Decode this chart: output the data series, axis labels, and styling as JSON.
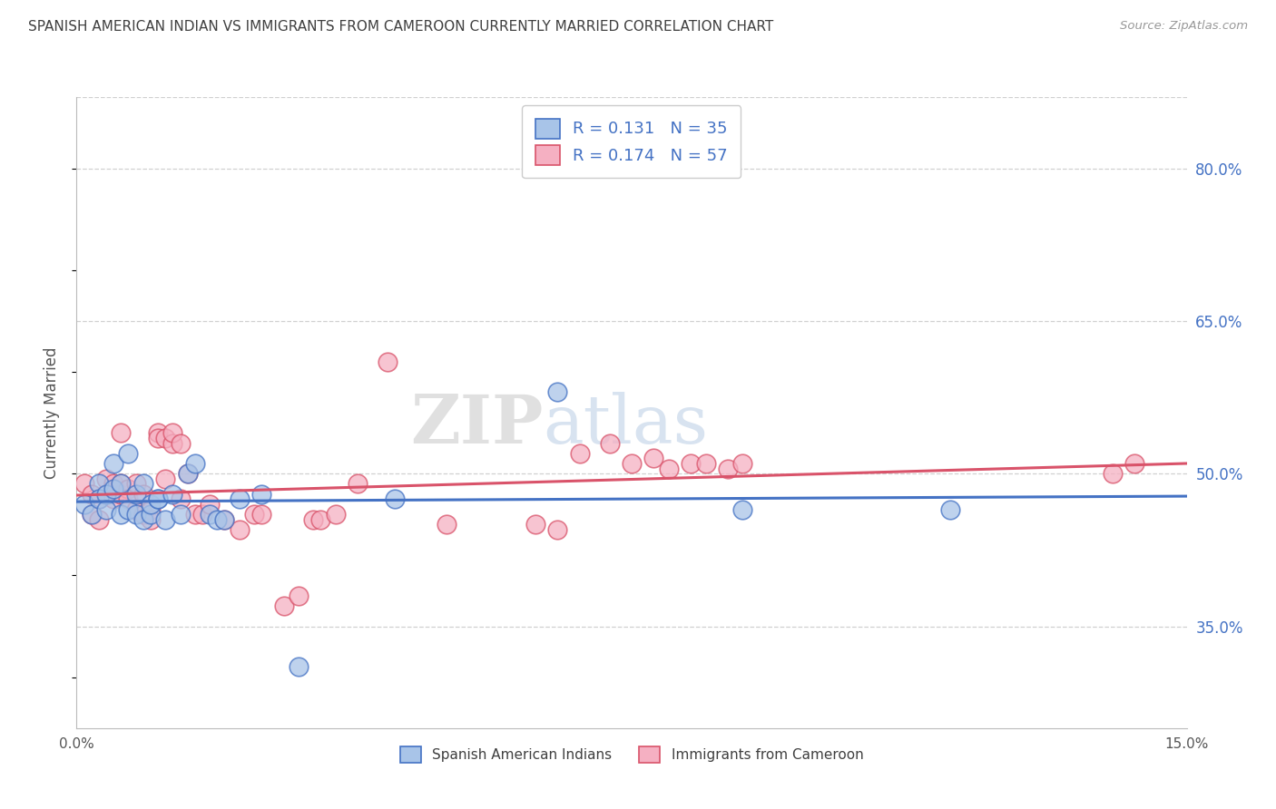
{
  "title": "SPANISH AMERICAN INDIAN VS IMMIGRANTS FROM CAMEROON CURRENTLY MARRIED CORRELATION CHART",
  "source": "Source: ZipAtlas.com",
  "ylabel": "Currently Married",
  "xlim": [
    0.0,
    0.15
  ],
  "ylim": [
    0.25,
    0.87
  ],
  "yticks": [
    0.35,
    0.5,
    0.65,
    0.8
  ],
  "ytick_labels": [
    "35.0%",
    "50.0%",
    "65.0%",
    "80.0%"
  ],
  "xticks": [
    0.0,
    0.03,
    0.06,
    0.09,
    0.12,
    0.15
  ],
  "xtick_labels": [
    "0.0%",
    "",
    "",
    "",
    "",
    "15.0%"
  ],
  "legend1_r": "0.131",
  "legend1_n": "35",
  "legend2_r": "0.174",
  "legend2_n": "57",
  "color_blue": "#a8c4e8",
  "color_pink": "#f5b0c2",
  "line_blue": "#4472c4",
  "line_pink": "#d9536a",
  "grid_color": "#d0d0d0",
  "title_color": "#404040",
  "blue_x": [
    0.001,
    0.002,
    0.003,
    0.003,
    0.004,
    0.004,
    0.005,
    0.005,
    0.006,
    0.006,
    0.007,
    0.007,
    0.008,
    0.008,
    0.009,
    0.009,
    0.01,
    0.01,
    0.011,
    0.011,
    0.012,
    0.013,
    0.014,
    0.015,
    0.016,
    0.018,
    0.019,
    0.02,
    0.022,
    0.025,
    0.03,
    0.043,
    0.065,
    0.09,
    0.118
  ],
  "blue_y": [
    0.47,
    0.46,
    0.49,
    0.475,
    0.48,
    0.465,
    0.51,
    0.485,
    0.49,
    0.46,
    0.52,
    0.465,
    0.46,
    0.48,
    0.455,
    0.49,
    0.46,
    0.47,
    0.475,
    0.475,
    0.455,
    0.48,
    0.46,
    0.5,
    0.51,
    0.46,
    0.455,
    0.455,
    0.475,
    0.48,
    0.31,
    0.475,
    0.58,
    0.465,
    0.465
  ],
  "pink_x": [
    0.001,
    0.002,
    0.002,
    0.003,
    0.003,
    0.004,
    0.004,
    0.005,
    0.005,
    0.006,
    0.006,
    0.006,
    0.007,
    0.007,
    0.008,
    0.008,
    0.009,
    0.009,
    0.01,
    0.01,
    0.011,
    0.011,
    0.012,
    0.012,
    0.013,
    0.013,
    0.014,
    0.014,
    0.015,
    0.016,
    0.017,
    0.018,
    0.02,
    0.022,
    0.024,
    0.025,
    0.028,
    0.03,
    0.032,
    0.033,
    0.035,
    0.038,
    0.042,
    0.05,
    0.062,
    0.065,
    0.068,
    0.072,
    0.075,
    0.078,
    0.08,
    0.083,
    0.085,
    0.088,
    0.09,
    0.14,
    0.143
  ],
  "pink_y": [
    0.49,
    0.46,
    0.48,
    0.455,
    0.475,
    0.48,
    0.495,
    0.49,
    0.475,
    0.48,
    0.54,
    0.49,
    0.485,
    0.475,
    0.465,
    0.49,
    0.46,
    0.48,
    0.465,
    0.455,
    0.54,
    0.535,
    0.535,
    0.495,
    0.53,
    0.54,
    0.53,
    0.475,
    0.5,
    0.46,
    0.46,
    0.47,
    0.455,
    0.445,
    0.46,
    0.46,
    0.37,
    0.38,
    0.455,
    0.455,
    0.46,
    0.49,
    0.61,
    0.45,
    0.45,
    0.445,
    0.52,
    0.53,
    0.51,
    0.515,
    0.505,
    0.51,
    0.51,
    0.505,
    0.51,
    0.5,
    0.51
  ]
}
